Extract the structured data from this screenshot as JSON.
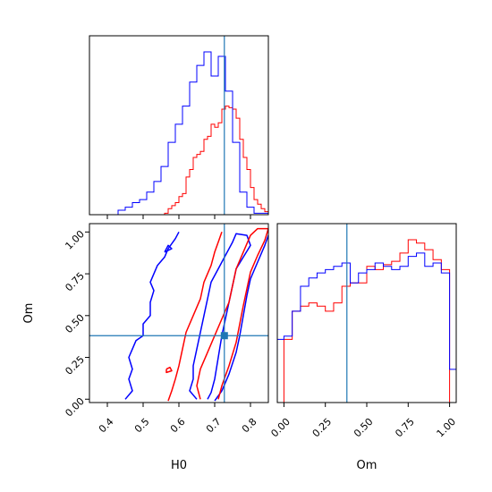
{
  "chart_data": {
    "type": "corner",
    "truth": {
      "H0": 0.727,
      "Om": 0.38
    },
    "colors": {
      "red": "#ff0000",
      "blue": "#0000ff",
      "truth": "#1f77b4"
    },
    "xlabels": {
      "H0": "H0",
      "Om": "Om"
    },
    "ylabels": {
      "Om": "Om"
    },
    "ticks": {
      "H0": [
        "0.4",
        "0.5",
        "0.6",
        "0.7",
        "0.8"
      ],
      "Om": [
        "0.00",
        "0.25",
        "0.50",
        "0.75",
        "1.00"
      ]
    },
    "panels": [
      {
        "id": "hist-H0",
        "type": "step-histogram",
        "x_range": [
          0.35,
          0.85
        ],
        "series": [
          {
            "color": "red",
            "edges": [
              0.56,
              0.57,
              0.58,
              0.59,
              0.6,
              0.61,
              0.62,
              0.63,
              0.64,
              0.65,
              0.66,
              0.67,
              0.68,
              0.69,
              0.7,
              0.71,
              0.72,
              0.73,
              0.74,
              0.75,
              0.76,
              0.77,
              0.78,
              0.79,
              0.8,
              0.81,
              0.82,
              0.83,
              0.84,
              0.85
            ],
            "counts": [
              1,
              4,
              6,
              8,
              12,
              14,
              25,
              30,
              38,
              40,
              42,
              50,
              52,
              60,
              58,
              61,
              70,
              72,
              71,
              70,
              64,
              50,
              38,
              30,
              18,
              10,
              7,
              4,
              2
            ]
          },
          {
            "color": "blue",
            "edges": [
              0.43,
              0.45,
              0.47,
              0.49,
              0.51,
              0.53,
              0.55,
              0.57,
              0.59,
              0.61,
              0.63,
              0.65,
              0.67,
              0.69,
              0.71,
              0.73,
              0.75,
              0.77,
              0.79,
              0.81,
              0.83,
              0.85
            ],
            "counts": [
              3,
              5,
              8,
              10,
              15,
              22,
              32,
              48,
              60,
              72,
              88,
              99,
              108,
              92,
              105,
              82,
              48,
              15,
              5,
              1,
              1
            ]
          }
        ]
      },
      {
        "id": "contour-H0-Om",
        "type": "contour",
        "x_range": [
          0.35,
          0.85
        ],
        "y_range": [
          -0.02,
          1.05
        ],
        "series": [
          {
            "color": "blue",
            "level": "outer",
            "points": [
              [
                0.45,
                0.0
              ],
              [
                0.47,
                0.05
              ],
              [
                0.46,
                0.12
              ],
              [
                0.47,
                0.18
              ],
              [
                0.46,
                0.25
              ],
              [
                0.47,
                0.3
              ],
              [
                0.48,
                0.35
              ],
              [
                0.5,
                0.38
              ],
              [
                0.5,
                0.45
              ],
              [
                0.52,
                0.5
              ],
              [
                0.52,
                0.58
              ],
              [
                0.53,
                0.65
              ],
              [
                0.52,
                0.7
              ],
              [
                0.53,
                0.75
              ],
              [
                0.54,
                0.8
              ],
              [
                0.56,
                0.85
              ],
              [
                0.57,
                0.9
              ],
              [
                0.59,
                0.96
              ],
              [
                0.6,
                1.0
              ]
            ]
          },
          {
            "color": "blue",
            "level": "inner",
            "points": [
              [
                0.65,
                0.0
              ],
              [
                0.63,
                0.05
              ],
              [
                0.64,
                0.12
              ],
              [
                0.64,
                0.2
              ],
              [
                0.65,
                0.3
              ],
              [
                0.66,
                0.4
              ],
              [
                0.67,
                0.5
              ],
              [
                0.68,
                0.6
              ],
              [
                0.69,
                0.7
              ],
              [
                0.71,
                0.78
              ],
              [
                0.73,
                0.86
              ],
              [
                0.75,
                0.94
              ],
              [
                0.76,
                0.99
              ],
              [
                0.79,
                0.98
              ],
              [
                0.8,
                0.92
              ],
              [
                0.78,
                0.85
              ],
              [
                0.76,
                0.78
              ],
              [
                0.75,
                0.68
              ],
              [
                0.74,
                0.58
              ],
              [
                0.73,
                0.48
              ],
              [
                0.72,
                0.38
              ],
              [
                0.71,
                0.25
              ],
              [
                0.7,
                0.12
              ],
              [
                0.69,
                0.04
              ],
              [
                0.68,
                0.0
              ]
            ]
          },
          {
            "color": "blue",
            "level": "right",
            "points": [
              [
                0.7,
                -0.01
              ],
              [
                0.72,
                0.05
              ],
              [
                0.74,
                0.15
              ],
              [
                0.76,
                0.28
              ],
              [
                0.77,
                0.38
              ],
              [
                0.78,
                0.5
              ],
              [
                0.79,
                0.62
              ],
              [
                0.8,
                0.72
              ],
              [
                0.82,
                0.82
              ],
              [
                0.84,
                0.92
              ],
              [
                0.85,
                0.98
              ]
            ]
          },
          {
            "color": "blue",
            "level": "speck",
            "points": [
              [
                0.56,
                0.88
              ],
              [
                0.58,
                0.9
              ],
              [
                0.57,
                0.92
              ],
              [
                0.56,
                0.88
              ]
            ]
          },
          {
            "color": "red",
            "level": "outer",
            "points": [
              [
                0.57,
                -0.01
              ],
              [
                0.58,
                0.05
              ],
              [
                0.59,
                0.12
              ],
              [
                0.6,
                0.2
              ],
              [
                0.61,
                0.3
              ],
              [
                0.62,
                0.4
              ],
              [
                0.64,
                0.5
              ],
              [
                0.66,
                0.6
              ],
              [
                0.67,
                0.7
              ],
              [
                0.69,
                0.8
              ],
              [
                0.7,
                0.88
              ],
              [
                0.71,
                0.94
              ],
              [
                0.72,
                1.0
              ]
            ]
          },
          {
            "color": "red",
            "level": "inner",
            "points": [
              [
                0.66,
                0.0
              ],
              [
                0.65,
                0.08
              ],
              [
                0.66,
                0.18
              ],
              [
                0.68,
                0.28
              ],
              [
                0.7,
                0.38
              ],
              [
                0.72,
                0.48
              ],
              [
                0.74,
                0.58
              ],
              [
                0.75,
                0.68
              ],
              [
                0.76,
                0.78
              ],
              [
                0.78,
                0.88
              ],
              [
                0.8,
                0.98
              ],
              [
                0.82,
                1.02
              ],
              [
                0.85,
                1.02
              ],
              [
                0.84,
                0.95
              ],
              [
                0.82,
                0.86
              ],
              [
                0.8,
                0.76
              ],
              [
                0.79,
                0.66
              ],
              [
                0.78,
                0.56
              ],
              [
                0.77,
                0.45
              ],
              [
                0.76,
                0.34
              ],
              [
                0.74,
                0.2
              ],
              [
                0.72,
                0.08
              ],
              [
                0.71,
                0.0
              ]
            ]
          },
          {
            "color": "red",
            "level": "speck",
            "points": [
              [
                0.565,
                0.18
              ],
              [
                0.575,
                0.19
              ],
              [
                0.58,
                0.17
              ],
              [
                0.565,
                0.16
              ],
              [
                0.565,
                0.18
              ]
            ]
          }
        ]
      },
      {
        "id": "hist-Om",
        "type": "step-histogram",
        "x_range": [
          -0.04,
          1.04
        ],
        "series": [
          {
            "color": "red",
            "edges": [
              0.0,
              0.05,
              0.1,
              0.15,
              0.2,
              0.25,
              0.3,
              0.35,
              0.4,
              0.45,
              0.5,
              0.55,
              0.6,
              0.65,
              0.7,
              0.75,
              0.8,
              0.85,
              0.9,
              0.95,
              1.0
            ],
            "counts": [
              38,
              55,
              58,
              60,
              58,
              55,
              60,
              70,
              72,
              72,
              82,
              80,
              83,
              85,
              90,
              98,
              96,
              92,
              86,
              80
            ]
          },
          {
            "color": "blue",
            "edges": [
              -0.04,
              0.0,
              0.05,
              0.1,
              0.15,
              0.2,
              0.25,
              0.3,
              0.35,
              0.4,
              0.45,
              0.5,
              0.55,
              0.6,
              0.65,
              0.7,
              0.75,
              0.8,
              0.85,
              0.9,
              0.95,
              1.0,
              1.04
            ],
            "counts": [
              38,
              40,
              55,
              70,
              75,
              78,
              80,
              82,
              84,
              72,
              78,
              80,
              84,
              82,
              80,
              82,
              88,
              90,
              82,
              84,
              78,
              20
            ]
          }
        ]
      }
    ]
  }
}
